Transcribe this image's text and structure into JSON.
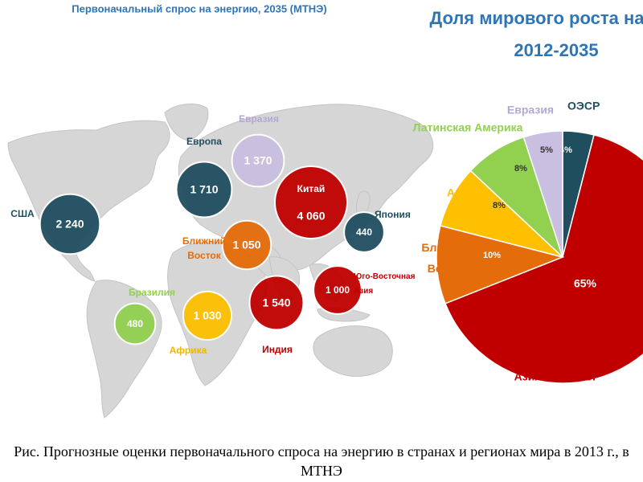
{
  "map_title": "Первоначальный спрос на энергию, 2035 (МТНЭ)",
  "pie_title_line1": "Доля мирового роста на",
  "pie_title_line2": "2012-2035",
  "colors": {
    "oecd": "#1f4e5f",
    "eurasia": "#c9bfe0",
    "china_india": "#c00000",
    "middle_east": "#e46c0a",
    "africa": "#fec000",
    "brazil_latam": "#92d050",
    "map_land": "#d4d4d4"
  },
  "chart_data": [
    {
      "type": "bubble-map",
      "title": "Первоначальный спрос на энергию, 2035 (МТНЭ)",
      "regions": [
        {
          "name": "США",
          "value_label": "2 240",
          "value": 2240,
          "group": "oecd"
        },
        {
          "name": "Европа",
          "value_label": "1 710",
          "value": 1710,
          "group": "oecd"
        },
        {
          "name": "Евразия",
          "value_label": "1 370",
          "value": 1370,
          "group": "eurasia"
        },
        {
          "name": "Китай",
          "value_label": "4 060",
          "value": 4060,
          "group": "china_india"
        },
        {
          "name": "Япония",
          "value_label": "440",
          "value": 440,
          "group": "oecd"
        },
        {
          "name": "Ближний Восток",
          "value_label": "1 050",
          "value": 1050,
          "group": "middle_east"
        },
        {
          "name": "Юго-Восточная Азия",
          "value_label": "1 000",
          "value": 1000,
          "group": "china_india"
        },
        {
          "name": "Индия",
          "value_label": "1 540",
          "value": 1540,
          "group": "china_india"
        },
        {
          "name": "Бразилия",
          "value_label": "480",
          "value": 480,
          "group": "brazil_latam"
        },
        {
          "name": "Африка",
          "value_label": "1 030",
          "value": 1030,
          "group": "africa"
        }
      ]
    },
    {
      "type": "pie",
      "title": "Доля мирового роста на 2012-2035",
      "slices": [
        {
          "name": "ОЭСР",
          "value": 4,
          "label": "4%",
          "color": "#1f4e5f"
        },
        {
          "name": "Азия вне ОЭСР",
          "value": 65,
          "label": "65%",
          "color": "#c00000"
        },
        {
          "name": "Ближний Восток",
          "value": 10,
          "label": "10%",
          "color": "#e46c0a"
        },
        {
          "name": "Африка",
          "value": 8,
          "label": "8%",
          "color": "#fec000"
        },
        {
          "name": "Латинская Америка",
          "value": 8,
          "label": "8%",
          "color": "#92d050"
        },
        {
          "name": "Евразия",
          "value": 5,
          "label": "5%",
          "color": "#c9bfe0"
        }
      ]
    }
  ],
  "caption": "Рис. Прогнозные оценки первоначального спроса на энергию в странах и регионах мира в 2013 г., в МТНЭ"
}
